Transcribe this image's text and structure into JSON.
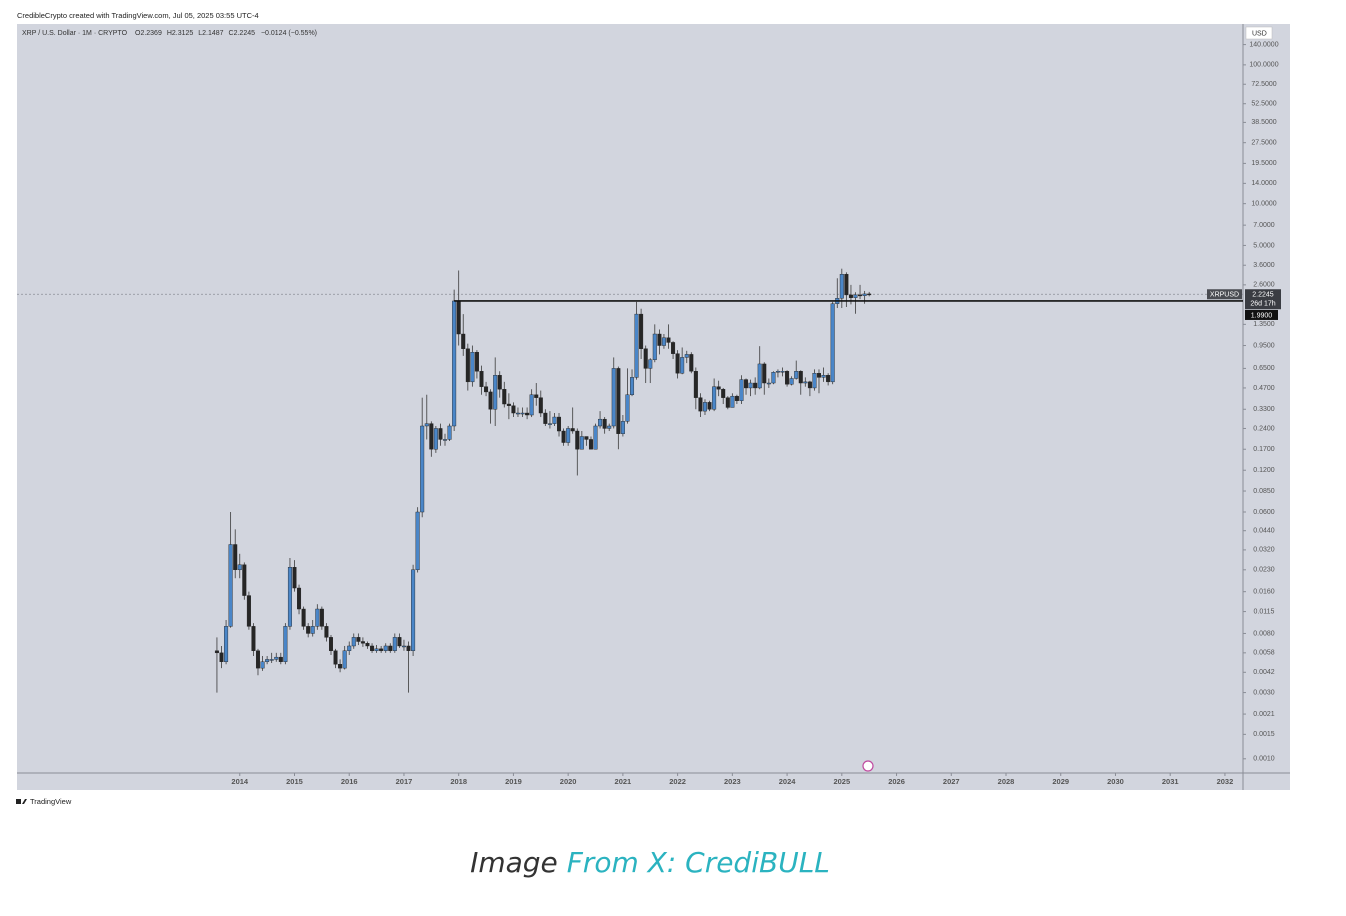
{
  "header": {
    "credit": "CredibleCrypto created with TradingView.com, Jul 05, 2025 03:55 UTC-4"
  },
  "chart_data": {
    "type": "candlestick",
    "title": "XRP / U.S. Dollar · 1M · CRYPTO",
    "legend_ohlc": [
      {
        "label": "O",
        "value": 2.2369
      },
      {
        "label": "H",
        "value": 2.3125
      },
      {
        "label": "L",
        "value": 2.1487
      },
      {
        "label": "C",
        "value": 2.2245
      }
    ],
    "change": "−0.0124 (−0.55%)",
    "currency": "USD",
    "x": [
      2013.583,
      2013.667,
      2013.75,
      2013.833,
      2013.917,
      2014.0,
      2014.083,
      2014.167,
      2014.25,
      2014.333,
      2014.417,
      2014.5,
      2014.583,
      2014.667,
      2014.75,
      2014.833,
      2014.917,
      2015.0,
      2015.083,
      2015.167,
      2015.25,
      2015.333,
      2015.417,
      2015.5,
      2015.583,
      2015.667,
      2015.75,
      2015.833,
      2015.917,
      2016.0,
      2016.083,
      2016.167,
      2016.25,
      2016.333,
      2016.417,
      2016.5,
      2016.583,
      2016.667,
      2016.75,
      2016.833,
      2016.917,
      2017.0,
      2017.083,
      2017.167,
      2017.25,
      2017.333,
      2017.417,
      2017.5,
      2017.583,
      2017.667,
      2017.75,
      2017.833,
      2017.917,
      2018.0,
      2018.083,
      2018.167,
      2018.25,
      2018.333,
      2018.417,
      2018.5,
      2018.583,
      2018.667,
      2018.75,
      2018.833,
      2018.917,
      2019.0,
      2019.083,
      2019.167,
      2019.25,
      2019.333,
      2019.417,
      2019.5,
      2019.583,
      2019.667,
      2019.75,
      2019.833,
      2019.917,
      2020.0,
      2020.083,
      2020.167,
      2020.25,
      2020.333,
      2020.417,
      2020.5,
      2020.583,
      2020.667,
      2020.75,
      2020.833,
      2020.917,
      2021.0,
      2021.083,
      2021.167,
      2021.25,
      2021.333,
      2021.417,
      2021.5,
      2021.583,
      2021.667,
      2021.75,
      2021.833,
      2021.917,
      2022.0,
      2022.083,
      2022.167,
      2022.25,
      2022.333,
      2022.417,
      2022.5,
      2022.583,
      2022.667,
      2022.75,
      2022.833,
      2022.917,
      2023.0,
      2023.083,
      2023.167,
      2023.25,
      2023.333,
      2023.417,
      2023.5,
      2023.583,
      2023.667,
      2023.75,
      2023.833,
      2023.917,
      2024.0,
      2024.083,
      2024.167,
      2024.25,
      2024.333,
      2024.417,
      2024.5,
      2024.583,
      2024.667,
      2024.75,
      2024.833,
      2024.917,
      2025.0,
      2025.083,
      2025.167,
      2025.25,
      2025.333,
      2025.417,
      2025.5
    ],
    "open": [
      0.006,
      0.0058,
      0.005,
      0.009,
      0.035,
      0.023,
      0.025,
      0.015,
      0.009,
      0.006,
      0.0045,
      0.005,
      0.0052,
      0.0052,
      0.0054,
      0.005,
      0.009,
      0.024,
      0.017,
      0.012,
      0.009,
      0.008,
      0.009,
      0.012,
      0.009,
      0.0075,
      0.006,
      0.0048,
      0.0045,
      0.006,
      0.0065,
      0.0075,
      0.007,
      0.0068,
      0.0065,
      0.006,
      0.0062,
      0.006,
      0.0065,
      0.006,
      0.0075,
      0.0065,
      0.0065,
      0.006,
      0.023,
      0.06,
      0.25,
      0.26,
      0.17,
      0.24,
      0.2,
      0.2,
      0.25,
      1.99,
      1.15,
      0.9,
      0.52,
      0.85,
      0.62,
      0.48,
      0.44,
      0.33,
      0.58,
      0.46,
      0.36,
      0.35,
      0.31,
      0.31,
      0.31,
      0.3,
      0.42,
      0.4,
      0.31,
      0.26,
      0.26,
      0.29,
      0.23,
      0.19,
      0.24,
      0.23,
      0.17,
      0.21,
      0.2,
      0.17,
      0.25,
      0.28,
      0.24,
      0.25,
      0.65,
      0.22,
      0.27,
      0.42,
      0.56,
      1.6,
      0.9,
      0.65,
      0.75,
      1.15,
      0.95,
      1.08,
      1.0,
      0.83,
      0.6,
      0.78,
      0.82,
      0.62,
      0.4,
      0.32,
      0.37,
      0.33,
      0.48,
      0.46,
      0.4,
      0.34,
      0.41,
      0.38,
      0.54,
      0.47,
      0.51,
      0.47,
      0.7,
      0.51,
      0.51,
      0.61,
      0.62,
      0.62,
      0.5,
      0.55,
      0.62,
      0.51,
      0.52,
      0.47,
      0.6,
      0.56,
      0.58,
      0.52,
      1.9,
      2.08,
      3.1,
      2.2,
      2.1,
      2.2,
      2.17,
      2.2369
    ],
    "high": [
      0.0075,
      0.0065,
      0.01,
      0.06,
      0.045,
      0.03,
      0.026,
      0.016,
      0.0095,
      0.0062,
      0.0055,
      0.0055,
      0.0058,
      0.0058,
      0.0058,
      0.0095,
      0.028,
      0.027,
      0.018,
      0.0125,
      0.0095,
      0.01,
      0.013,
      0.0125,
      0.0095,
      0.0078,
      0.0062,
      0.0052,
      0.0065,
      0.007,
      0.008,
      0.008,
      0.0075,
      0.007,
      0.0068,
      0.0066,
      0.0065,
      0.0068,
      0.0068,
      0.008,
      0.008,
      0.0072,
      0.007,
      0.025,
      0.065,
      0.4,
      0.42,
      0.27,
      0.25,
      0.26,
      0.22,
      0.26,
      2.4,
      3.3,
      1.6,
      0.98,
      0.95,
      0.88,
      0.68,
      0.52,
      0.46,
      0.78,
      0.62,
      0.52,
      0.43,
      0.37,
      0.34,
      0.34,
      0.34,
      0.46,
      0.51,
      0.45,
      0.33,
      0.32,
      0.31,
      0.31,
      0.24,
      0.25,
      0.34,
      0.24,
      0.23,
      0.21,
      0.21,
      0.26,
      0.32,
      0.29,
      0.26,
      0.78,
      0.67,
      0.3,
      0.65,
      0.64,
      1.96,
      1.75,
      0.95,
      0.77,
      1.35,
      1.24,
      1.15,
      1.35,
      1.02,
      0.88,
      0.92,
      0.87,
      0.85,
      0.66,
      0.43,
      0.39,
      0.38,
      0.55,
      0.53,
      0.47,
      0.41,
      0.43,
      0.42,
      0.58,
      0.55,
      0.54,
      0.56,
      0.94,
      0.72,
      0.55,
      0.62,
      0.64,
      0.66,
      0.63,
      0.57,
      0.74,
      0.63,
      0.56,
      0.53,
      0.64,
      0.64,
      0.66,
      0.6,
      1.96,
      2.9,
      3.4,
      3.2,
      2.6,
      2.3,
      2.6,
      2.35,
      2.3125
    ],
    "low": [
      0.003,
      0.0045,
      0.0048,
      0.0088,
      0.02,
      0.02,
      0.014,
      0.0085,
      0.0055,
      0.004,
      0.0043,
      0.0048,
      0.0049,
      0.005,
      0.0048,
      0.0048,
      0.0085,
      0.016,
      0.011,
      0.0085,
      0.0075,
      0.0076,
      0.0085,
      0.0085,
      0.007,
      0.0056,
      0.0045,
      0.0042,
      0.0044,
      0.0056,
      0.0062,
      0.0066,
      0.0064,
      0.0062,
      0.0058,
      0.0058,
      0.0058,
      0.0058,
      0.0058,
      0.0058,
      0.0063,
      0.006,
      0.003,
      0.0055,
      0.022,
      0.055,
      0.2,
      0.15,
      0.16,
      0.18,
      0.18,
      0.195,
      0.23,
      0.95,
      0.8,
      0.45,
      0.48,
      0.55,
      0.42,
      0.41,
      0.26,
      0.25,
      0.4,
      0.34,
      0.28,
      0.29,
      0.29,
      0.29,
      0.28,
      0.29,
      0.35,
      0.29,
      0.25,
      0.24,
      0.25,
      0.21,
      0.18,
      0.18,
      0.22,
      0.11,
      0.17,
      0.18,
      0.17,
      0.17,
      0.24,
      0.22,
      0.23,
      0.24,
      0.17,
      0.21,
      0.26,
      0.41,
      0.54,
      0.76,
      0.51,
      0.51,
      0.72,
      0.82,
      0.9,
      0.9,
      0.76,
      0.55,
      0.59,
      0.71,
      0.6,
      0.33,
      0.29,
      0.3,
      0.32,
      0.32,
      0.41,
      0.36,
      0.33,
      0.34,
      0.36,
      0.36,
      0.42,
      0.41,
      0.42,
      0.46,
      0.42,
      0.47,
      0.5,
      0.56,
      0.57,
      0.48,
      0.49,
      0.54,
      0.42,
      0.48,
      0.41,
      0.45,
      0.43,
      0.52,
      0.49,
      0.5,
      1.77,
      1.77,
      1.8,
      1.88,
      1.61,
      2.05,
      1.9,
      2.1487
    ],
    "close": [
      0.0058,
      0.005,
      0.009,
      0.035,
      0.023,
      0.025,
      0.015,
      0.009,
      0.006,
      0.0045,
      0.005,
      0.0052,
      0.0052,
      0.0054,
      0.005,
      0.009,
      0.024,
      0.017,
      0.012,
      0.009,
      0.008,
      0.009,
      0.012,
      0.009,
      0.0075,
      0.006,
      0.0048,
      0.0045,
      0.006,
      0.0065,
      0.0075,
      0.007,
      0.0068,
      0.0065,
      0.006,
      0.0062,
      0.006,
      0.0065,
      0.006,
      0.0075,
      0.0065,
      0.0065,
      0.006,
      0.023,
      0.06,
      0.25,
      0.26,
      0.17,
      0.24,
      0.2,
      0.2,
      0.25,
      1.99,
      1.15,
      0.9,
      0.52,
      0.85,
      0.62,
      0.48,
      0.44,
      0.33,
      0.58,
      0.46,
      0.36,
      0.35,
      0.31,
      0.31,
      0.31,
      0.3,
      0.42,
      0.4,
      0.31,
      0.26,
      0.26,
      0.29,
      0.23,
      0.19,
      0.24,
      0.23,
      0.17,
      0.21,
      0.2,
      0.17,
      0.25,
      0.28,
      0.24,
      0.25,
      0.65,
      0.22,
      0.27,
      0.42,
      0.56,
      1.6,
      0.9,
      0.65,
      0.75,
      1.15,
      0.95,
      1.08,
      1.0,
      0.83,
      0.6,
      0.78,
      0.82,
      0.62,
      0.4,
      0.32,
      0.37,
      0.33,
      0.48,
      0.46,
      0.4,
      0.34,
      0.41,
      0.38,
      0.54,
      0.47,
      0.51,
      0.47,
      0.7,
      0.51,
      0.51,
      0.61,
      0.62,
      0.62,
      0.5,
      0.55,
      0.62,
      0.51,
      0.52,
      0.47,
      0.6,
      0.56,
      0.58,
      0.52,
      1.9,
      2.08,
      3.1,
      2.2,
      2.1,
      2.2,
      2.17,
      2.2369,
      2.2245
    ],
    "up_color": "#4a86c8",
    "down_color": "#262626",
    "log_scale": true,
    "grid": false,
    "xlim": [
      2009.93,
      2032.33
    ],
    "xticks": [
      2014,
      2015,
      2016,
      2017,
      2018,
      2019,
      2020,
      2021,
      2022,
      2023,
      2024,
      2025,
      2026,
      2027,
      2028,
      2029,
      2030,
      2031,
      2032
    ],
    "ylim": [
      0.00079,
      197
    ],
    "yticks": [
      {
        "value": 140,
        "label": "140.0000"
      },
      {
        "value": 100,
        "label": "100.0000"
      },
      {
        "value": 72.5,
        "label": "72.5000"
      },
      {
        "value": 52.5,
        "label": "52.5000"
      },
      {
        "value": 38.5,
        "label": "38.5000"
      },
      {
        "value": 27.5,
        "label": "27.5000"
      },
      {
        "value": 19.5,
        "label": "19.5000"
      },
      {
        "value": 14,
        "label": "14.0000"
      },
      {
        "value": 10,
        "label": "10.0000"
      },
      {
        "value": 7,
        "label": "7.0000"
      },
      {
        "value": 5,
        "label": "5.0000"
      },
      {
        "value": 3.6,
        "label": "3.6000"
      },
      {
        "value": 2.6,
        "label": "2.6000"
      },
      {
        "value": 1.35,
        "label": "1.3500"
      },
      {
        "value": 0.95,
        "label": "0.9500"
      },
      {
        "value": 0.65,
        "label": "0.6500"
      },
      {
        "value": 0.47,
        "label": "0.4700"
      },
      {
        "value": 0.33,
        "label": "0.3300"
      },
      {
        "value": 0.24,
        "label": "0.2400"
      },
      {
        "value": 0.17,
        "label": "0.1700"
      },
      {
        "value": 0.12,
        "label": "0.1200"
      },
      {
        "value": 0.085,
        "label": "0.0850"
      },
      {
        "value": 0.06,
        "label": "0.0600"
      },
      {
        "value": 0.044,
        "label": "0.0440"
      },
      {
        "value": 0.032,
        "label": "0.0320"
      },
      {
        "value": 0.023,
        "label": "0.0230"
      },
      {
        "value": 0.016,
        "label": "0.0160"
      },
      {
        "value": 0.0115,
        "label": "0.0115"
      },
      {
        "value": 0.008,
        "label": "0.0080"
      },
      {
        "value": 0.0058,
        "label": "0.0058"
      },
      {
        "value": 0.0042,
        "label": "0.0042"
      },
      {
        "value": 0.003,
        "label": "0.0030"
      },
      {
        "value": 0.0021,
        "label": "0.0021"
      },
      {
        "value": 0.0015,
        "label": "0.0015"
      },
      {
        "value": 0.001,
        "label": "0.0010"
      }
    ],
    "last_price": {
      "symbol": "XRPUSD",
      "value": 2.2245,
      "countdown": "26d 17h"
    },
    "level": {
      "value": 1.99,
      "label": "1.9900",
      "start": 2017.917
    }
  },
  "footer": {
    "logo": "TradingView"
  },
  "caption": {
    "prefix": "Image",
    "source": "From X: CrediBULL"
  }
}
